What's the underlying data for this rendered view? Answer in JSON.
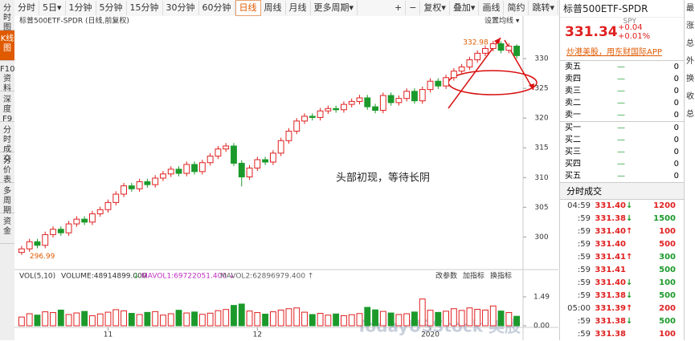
{
  "toolbar": {
    "tabs": [
      "分时",
      "5日▾",
      "1分钟",
      "5分钟",
      "15分钟",
      "30分钟",
      "60分钟",
      "日线",
      "周线",
      "月线",
      "更多周期▾"
    ],
    "active": 7,
    "tools": [
      "+",
      "−",
      "复权▾",
      "叠加▾",
      "画线",
      "简约",
      "跳转▾"
    ]
  },
  "sidebar": [
    "分时图",
    "K线图",
    "F10资料",
    "深度F9",
    "分时成交",
    "分价表",
    "多周期",
    "资金"
  ],
  "sidebar_active": 1,
  "chart_header": {
    "title": "标普500ETF-SPDR (日线,前复权)",
    "ma_button": "设置均线 ▾"
  },
  "volume_header": {
    "label": "VOL(5,10)",
    "volume": "VOLUME:48914899.000",
    "ma1": "MAVOL1:69722051.400 ↓",
    "ma2": "MAVOL2:62896979.400 ↑",
    "arrow": "↓",
    "buttons": [
      "改参数",
      "加指标",
      "换指标"
    ]
  },
  "annotation": "头部初现，等待长阴",
  "watermark": "TodayUSStock 美股",
  "chart_data": {
    "type": "candlestick",
    "dates": [
      null,
      null,
      null,
      null,
      null,
      null,
      null,
      null,
      null,
      null,
      null,
      "11",
      null,
      null,
      null,
      null,
      null,
      null,
      null,
      null,
      null,
      null,
      null,
      null,
      null,
      null,
      null,
      null,
      null,
      null,
      "12",
      null,
      null,
      null,
      null,
      null,
      null,
      null,
      null,
      null,
      null,
      null,
      null,
      null,
      null,
      null,
      null,
      null,
      null,
      null,
      null,
      null,
      "2020",
      null,
      null,
      null,
      null,
      null,
      null,
      null,
      null,
      null,
      null,
      null
    ],
    "open": [
      297.4,
      298.0,
      299.2,
      298.6,
      300.4,
      301.3,
      300.7,
      302.2,
      303.0,
      302.5,
      303.9,
      304.6,
      305.8,
      307.2,
      308.6,
      308.1,
      309.3,
      308.8,
      309.9,
      310.6,
      311.4,
      310.7,
      312.2,
      311.0,
      312.5,
      313.6,
      314.8,
      315.3,
      312.4,
      310.1,
      311.6,
      313.0,
      312.6,
      314.1,
      316.2,
      317.8,
      319.5,
      320.3,
      320.1,
      321.2,
      321.6,
      321.4,
      322.3,
      322.8,
      323.4,
      321.9,
      321.3,
      323.8,
      322.6,
      323.3,
      324.5,
      322.9,
      324.8,
      326.2,
      325.4,
      326.8,
      327.9,
      328.6,
      329.8,
      330.9,
      331.7,
      332.5,
      331.4,
      332.1
    ],
    "high": [
      298.5,
      299.7,
      299.7,
      300.9,
      301.8,
      301.8,
      302.7,
      303.5,
      303.5,
      304.4,
      305.1,
      306.3,
      307.7,
      309.1,
      309.1,
      309.8,
      309.8,
      310.4,
      311.1,
      311.9,
      311.9,
      312.7,
      312.7,
      313.0,
      314.1,
      315.3,
      315.8,
      315.8,
      312.9,
      312.1,
      313.5,
      313.5,
      314.6,
      316.7,
      318.3,
      320.0,
      320.8,
      320.8,
      321.7,
      322.1,
      322.1,
      322.8,
      323.3,
      323.9,
      323.9,
      322.4,
      324.3,
      324.3,
      323.8,
      325.0,
      325.0,
      325.3,
      326.7,
      326.7,
      327.3,
      328.4,
      329.1,
      330.3,
      331.4,
      332.2,
      332.98,
      332.9,
      332.6,
      332.4
    ],
    "low": [
      296.99,
      297.5,
      298.1,
      298.1,
      299.9,
      300.2,
      300.2,
      301.7,
      302.0,
      302.0,
      303.4,
      304.1,
      305.3,
      306.7,
      307.6,
      307.6,
      308.3,
      308.3,
      309.4,
      310.1,
      310.2,
      310.2,
      310.5,
      310.5,
      312.0,
      313.1,
      314.3,
      311.9,
      308.5,
      309.6,
      311.1,
      312.1,
      312.1,
      313.6,
      315.7,
      317.3,
      319.0,
      319.6,
      319.6,
      320.7,
      320.9,
      320.9,
      321.8,
      322.3,
      321.4,
      320.8,
      320.8,
      322.1,
      322.1,
      322.8,
      322.4,
      322.4,
      324.3,
      324.9,
      324.9,
      326.3,
      327.4,
      328.1,
      329.3,
      330.4,
      331.2,
      330.9,
      330.9,
      330.0
    ],
    "close": [
      298.0,
      299.2,
      298.6,
      300.4,
      301.3,
      300.7,
      302.2,
      303.0,
      302.5,
      303.9,
      304.6,
      305.8,
      307.2,
      308.6,
      308.1,
      309.3,
      308.8,
      309.9,
      310.6,
      311.4,
      310.7,
      312.2,
      311.0,
      312.5,
      313.6,
      314.8,
      315.3,
      312.4,
      310.1,
      311.6,
      313.0,
      312.6,
      314.1,
      316.2,
      317.8,
      319.5,
      320.3,
      320.1,
      321.2,
      321.6,
      321.4,
      322.3,
      322.8,
      323.4,
      321.9,
      321.3,
      323.8,
      322.6,
      323.3,
      324.5,
      322.9,
      324.8,
      326.2,
      325.4,
      326.8,
      327.9,
      328.6,
      329.8,
      330.9,
      331.7,
      332.5,
      331.4,
      332.1,
      330.5
    ],
    "volume": [
      0.45,
      0.62,
      0.55,
      0.72,
      0.68,
      0.81,
      0.58,
      0.66,
      0.74,
      0.52,
      0.61,
      0.7,
      0.83,
      0.77,
      0.64,
      0.58,
      0.69,
      0.73,
      0.55,
      0.62,
      0.8,
      0.66,
      0.71,
      0.59,
      0.65,
      0.78,
      0.84,
      1.05,
      1.12,
      0.76,
      0.68,
      0.6,
      0.72,
      0.81,
      0.88,
      0.92,
      0.7,
      0.58,
      0.64,
      0.55,
      0.61,
      0.52,
      0.57,
      0.63,
      0.95,
      0.82,
      0.74,
      0.66,
      0.58,
      0.62,
      0.71,
      1.38,
      0.8,
      0.69,
      0.75,
      0.88,
      0.79,
      0.92,
      0.85,
      0.81,
      1.02,
      0.76,
      0.68,
      0.49
    ],
    "up_color": "#e02020",
    "down_color": "#1b9a2b",
    "ylim": [
      296,
      335
    ],
    "yticks": [
      300,
      305,
      310,
      315,
      320,
      325,
      330
    ],
    "vol_ylim": [
      0,
      1.49
    ],
    "vol_yticks": [
      1.49,
      {
        "value": 0,
        "label": "0.00"
      }
    ]
  },
  "quote": {
    "name": "标普500ETF-SPDR",
    "symbol": "SPY",
    "price": "331.34",
    "change": "+0.04",
    "change_pct": "+0.01%",
    "promo": "炒港美股，用东财国际APP"
  },
  "order_book": [
    {
      "label": "卖五",
      "price": "—",
      "volume": 0
    },
    {
      "label": "卖四",
      "price": "—",
      "volume": 0
    },
    {
      "label": "卖三",
      "price": "—",
      "volume": 0
    },
    {
      "label": "卖二",
      "price": "—",
      "volume": 0
    },
    {
      "label": "卖一",
      "price": "—",
      "volume": 0
    },
    {
      "label": "买一",
      "price": "—",
      "volume": 0
    },
    {
      "label": "买二",
      "price": "—",
      "volume": 0
    },
    {
      "label": "买三",
      "price": "—",
      "volume": 0
    },
    {
      "label": "买四",
      "price": "—",
      "volume": 0
    },
    {
      "label": "买五",
      "price": "—",
      "volume": 0
    }
  ],
  "trades_title": "分时成交",
  "trades": [
    {
      "time": "04:59",
      "price": "331.40",
      "dir": "↓",
      "volume": 1200,
      "color": "#e02020"
    },
    {
      "time": ":59",
      "price": "331.38",
      "dir": "↓",
      "volume": 1500,
      "color": "#1b9a2b"
    },
    {
      "time": ":59",
      "price": "331.40",
      "dir": "↑",
      "volume": 100,
      "color": "#e02020"
    },
    {
      "time": ":59",
      "price": "331.40",
      "dir": "",
      "volume": 500,
      "color": "#e02020"
    },
    {
      "time": ":59",
      "price": "331.41",
      "dir": "↑",
      "volume": 300,
      "color": "#1b9a2b"
    },
    {
      "time": ":59",
      "price": "331.41",
      "dir": "",
      "volume": 500,
      "color": "#1b9a2b"
    },
    {
      "time": ":59",
      "price": "331.40",
      "dir": "↓",
      "volume": 100,
      "color": "#1b9a2b"
    },
    {
      "time": ":59",
      "price": "331.38",
      "dir": "↓",
      "volume": 500,
      "color": "#1b9a2b"
    },
    {
      "time": "05:00",
      "price": "331.39",
      "dir": "↑",
      "volume": 200,
      "color": "#e02020"
    },
    {
      "time": ":59",
      "price": "331.38",
      "dir": "↓",
      "volume": 500,
      "color": "#1b9a2b"
    },
    {
      "time": ":59",
      "price": "331.38",
      "dir": "",
      "volume": 100,
      "color": "#e02020"
    }
  ],
  "side_labels": [
    "最",
    "涨",
    "总",
    "外",
    "换",
    "收",
    "总"
  ]
}
